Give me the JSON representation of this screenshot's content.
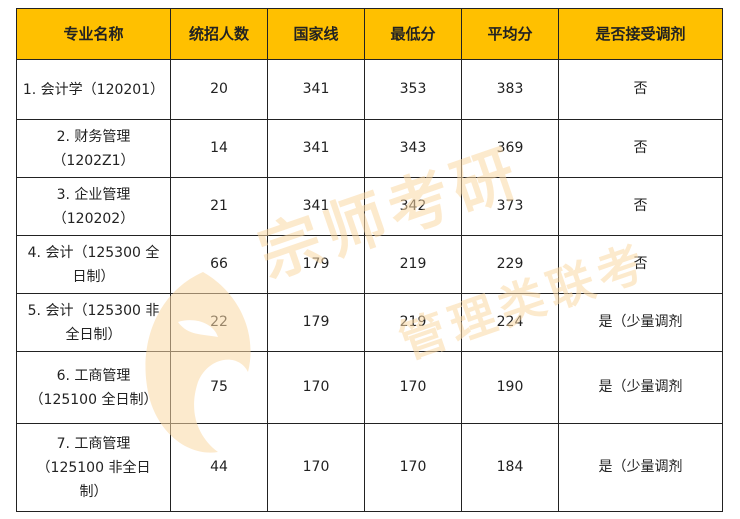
{
  "headers": [
    "专业名称",
    "统招人数",
    "国家线",
    "最低分",
    "平均分",
    "是否接受调剂"
  ],
  "rows": [
    {
      "name": [
        "1. 会计学（120201）"
      ],
      "enroll": "20",
      "national": "341",
      "min": "353",
      "avg": "383",
      "adjust": "否"
    },
    {
      "name": [
        "2. 财务管理",
        "（1202Z1）"
      ],
      "enroll": "14",
      "national": "341",
      "min": "343",
      "avg": "369",
      "adjust": "否"
    },
    {
      "name": [
        "3. 企业管理",
        "（120202）"
      ],
      "enroll": "21",
      "national": "341",
      "min": "342",
      "avg": "373",
      "adjust": "否"
    },
    {
      "name": [
        "4. 会计（125300 全",
        "日制）"
      ],
      "enroll": "66",
      "national": "179",
      "min": "219",
      "avg": "229",
      "adjust": "否"
    },
    {
      "name": [
        "5. 会计（125300 非",
        "全日制）"
      ],
      "enroll": "22",
      "national": "179",
      "min": "219",
      "avg": "224",
      "adjust": "是（少量调剂"
    },
    {
      "name": [
        "6. 工商管理",
        "（125100 全日制）"
      ],
      "enroll": "75",
      "national": "170",
      "min": "170",
      "avg": "190",
      "adjust": "是（少量调剂"
    },
    {
      "name": [
        "7. 工商管理",
        "（125100 非全日",
        "制）"
      ],
      "enroll": "44",
      "national": "170",
      "min": "170",
      "avg": "184",
      "adjust": "是（少量调剂"
    }
  ],
  "watermark": {
    "line1": "宗师考研",
    "line2": "管理类联考",
    "color": "#fbd9a6"
  },
  "colors": {
    "header_bg": "#ffc000"
  }
}
